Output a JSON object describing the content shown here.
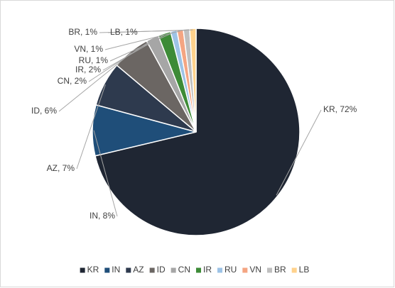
{
  "chart_data": {
    "type": "pie",
    "categories": [
      "KR",
      "IN",
      "AZ",
      "ID",
      "CN",
      "IR",
      "RU",
      "VN",
      "BR",
      "LB"
    ],
    "values": [
      72,
      8,
      7,
      6,
      2,
      2,
      1,
      1,
      1,
      1
    ],
    "value_labels": [
      "KR, 72%",
      "IN, 8%",
      "AZ, 7%",
      "ID, 6%",
      "CN, 2%",
      "IR, 2%",
      "RU, 1%",
      "VN, 1%",
      "BR, 1%",
      "LB, 1%"
    ],
    "colors": [
      "#1f2633",
      "#1f4e79",
      "#2e3a4e",
      "#6b6663",
      "#a6a6a6",
      "#3d8b37",
      "#9dc3e6",
      "#f4a582",
      "#bfbfbf",
      "#ffd28c"
    ],
    "legend": "bottom"
  }
}
